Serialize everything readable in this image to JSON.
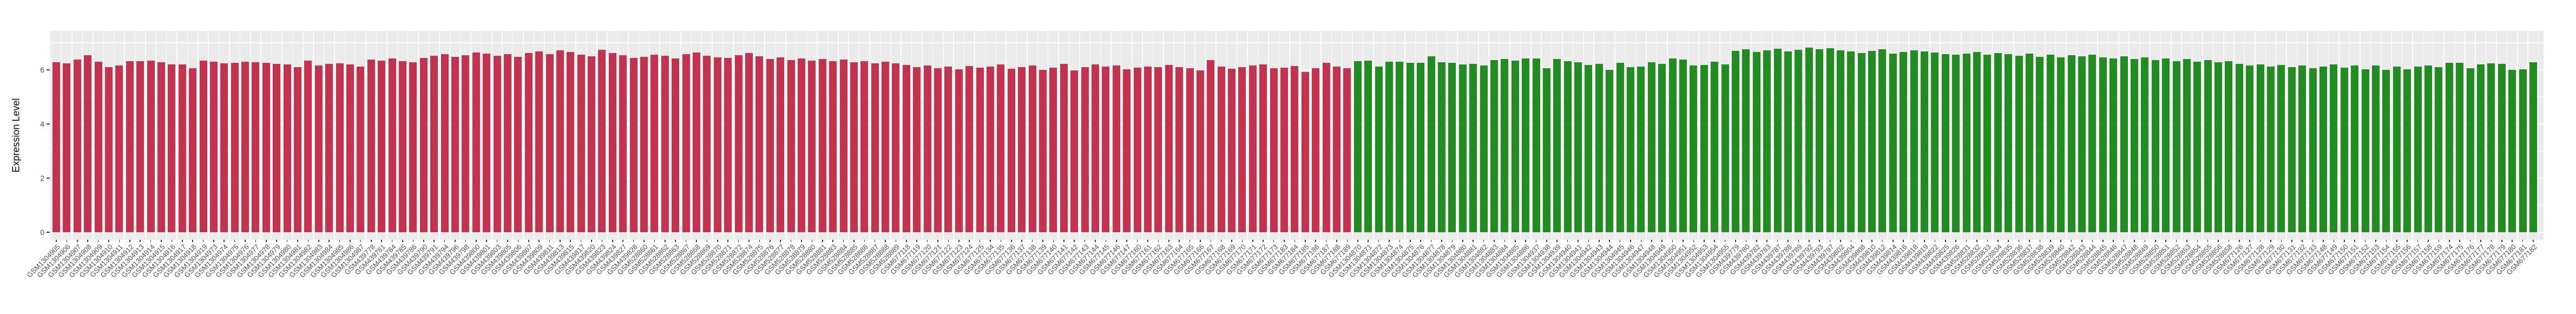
{
  "chart_data": {
    "type": "bar",
    "title": "",
    "xlabel": "",
    "ylabel": "Expression Level",
    "ylim": [
      0,
      7.45
    ],
    "yticks": [
      0,
      2,
      4,
      6
    ],
    "grid": "on",
    "legend": "none",
    "panel_background": "#EBEBEB",
    "grid_color": "#FFFFFF",
    "tick_text_color": "#4D4D4D",
    "colors": {
      "r": "#C2334F",
      "g": "#228B22"
    },
    "samples": [
      [
        "GSM1304905",
        6.28,
        "r"
      ],
      [
        "GSM1304906",
        6.25,
        "r"
      ],
      [
        "GSM1304907",
        6.38,
        "r"
      ],
      [
        "GSM1304908",
        6.55,
        "r"
      ],
      [
        "GSM1304909",
        6.31,
        "r"
      ],
      [
        "GSM1304910",
        6.1,
        "r"
      ],
      [
        "GSM1304911",
        6.16,
        "r"
      ],
      [
        "GSM1304912",
        6.32,
        "r"
      ],
      [
        "GSM1304913",
        6.32,
        "r"
      ],
      [
        "GSM1304914",
        6.34,
        "r"
      ],
      [
        "GSM1304915",
        6.28,
        "r"
      ],
      [
        "GSM1304916",
        6.21,
        "r"
      ],
      [
        "GSM1304917",
        6.21,
        "r"
      ],
      [
        "GSM1304918",
        6.06,
        "r"
      ],
      [
        "GSM1304919",
        6.35,
        "r"
      ],
      [
        "GSM1304973",
        6.3,
        "r"
      ],
      [
        "GSM1304974",
        6.24,
        "r"
      ],
      [
        "GSM1304975",
        6.27,
        "r"
      ],
      [
        "GSM1304976",
        6.3,
        "r"
      ],
      [
        "GSM1304977",
        6.28,
        "r"
      ],
      [
        "GSM1304978",
        6.26,
        "r"
      ],
      [
        "GSM1304979",
        6.23,
        "r"
      ],
      [
        "GSM1304980",
        6.2,
        "r"
      ],
      [
        "GSM1304981",
        6.1,
        "r"
      ],
      [
        "GSM1304982",
        6.34,
        "r"
      ],
      [
        "GSM1304983",
        6.17,
        "r"
      ],
      [
        "GSM1304984",
        6.22,
        "r"
      ],
      [
        "GSM1304985",
        6.24,
        "r"
      ],
      [
        "GSM1304986",
        6.2,
        "r"
      ],
      [
        "GSM1304987",
        6.12,
        "r"
      ],
      [
        "GSM439778",
        6.38,
        "r"
      ],
      [
        "GSM439781",
        6.35,
        "r"
      ],
      [
        "GSM439784",
        6.42,
        "r"
      ],
      [
        "GSM439785",
        6.32,
        "r"
      ],
      [
        "GSM439786",
        6.28,
        "r"
      ],
      [
        "GSM439790",
        6.45,
        "r"
      ],
      [
        "GSM439791",
        6.52,
        "r"
      ],
      [
        "GSM439794",
        6.58,
        "r"
      ],
      [
        "GSM439796",
        6.48,
        "r"
      ],
      [
        "GSM439798",
        6.55,
        "r"
      ],
      [
        "GSM439800",
        6.65,
        "r"
      ],
      [
        "GSM439801",
        6.6,
        "r"
      ],
      [
        "GSM439803",
        6.52,
        "r"
      ],
      [
        "GSM439805",
        6.58,
        "r"
      ],
      [
        "GSM439806",
        6.48,
        "r"
      ],
      [
        "GSM439807",
        6.62,
        "r"
      ],
      [
        "GSM439809",
        6.68,
        "r"
      ],
      [
        "GSM439811",
        6.58,
        "r"
      ],
      [
        "GSM439813",
        6.72,
        "r"
      ],
      [
        "GSM439815",
        6.66,
        "r"
      ],
      [
        "GSM439817",
        6.56,
        "r"
      ],
      [
        "GSM439820",
        6.5,
        "r"
      ],
      [
        "GSM439823",
        6.75,
        "r"
      ],
      [
        "GSM439824",
        6.62,
        "r"
      ],
      [
        "GSM439827",
        6.55,
        "r"
      ],
      [
        "GSM439828",
        6.45,
        "r"
      ],
      [
        "GSM528860",
        6.48,
        "r"
      ],
      [
        "GSM528861",
        6.56,
        "r"
      ],
      [
        "GSM528862",
        6.52,
        "r"
      ],
      [
        "GSM528863",
        6.42,
        "r"
      ],
      [
        "GSM528867",
        6.58,
        "r"
      ],
      [
        "GSM528868",
        6.65,
        "r"
      ],
      [
        "GSM528869",
        6.53,
        "r"
      ],
      [
        "GSM528870",
        6.47,
        "r"
      ],
      [
        "GSM528871",
        6.44,
        "r"
      ],
      [
        "GSM528872",
        6.55,
        "r"
      ],
      [
        "GSM528874",
        6.62,
        "r"
      ],
      [
        "GSM528875",
        6.5,
        "r"
      ],
      [
        "GSM528876",
        6.4,
        "r"
      ],
      [
        "GSM528877",
        6.46,
        "r"
      ],
      [
        "GSM528878",
        6.36,
        "r"
      ],
      [
        "GSM528879",
        6.43,
        "r"
      ],
      [
        "GSM528880",
        6.34,
        "r"
      ],
      [
        "GSM528881",
        6.4,
        "r"
      ],
      [
        "GSM528883",
        6.32,
        "r"
      ],
      [
        "GSM528884",
        6.38,
        "r"
      ],
      [
        "GSM528885",
        6.28,
        "r"
      ],
      [
        "GSM528886",
        6.33,
        "r"
      ],
      [
        "GSM528887",
        6.25,
        "r"
      ],
      [
        "GSM528888",
        6.3,
        "r"
      ],
      [
        "GSM528889",
        6.24,
        "r"
      ],
      [
        "GSM677118",
        6.18,
        "r"
      ],
      [
        "GSM677119",
        6.1,
        "r"
      ],
      [
        "GSM677120",
        6.16,
        "r"
      ],
      [
        "GSM677121",
        6.06,
        "r"
      ],
      [
        "GSM677122",
        6.13,
        "r"
      ],
      [
        "GSM677123",
        6.03,
        "r"
      ],
      [
        "GSM677124",
        6.15,
        "r"
      ],
      [
        "GSM677125",
        6.08,
        "r"
      ],
      [
        "GSM677134",
        6.12,
        "r"
      ],
      [
        "GSM677135",
        6.2,
        "r"
      ],
      [
        "GSM677136",
        6.04,
        "r"
      ],
      [
        "GSM677137",
        6.1,
        "r"
      ],
      [
        "GSM677138",
        6.16,
        "r"
      ],
      [
        "GSM677139",
        6.0,
        "r"
      ],
      [
        "GSM677140",
        6.08,
        "r"
      ],
      [
        "GSM677141",
        6.23,
        "r"
      ],
      [
        "GSM677142",
        5.98,
        "r"
      ],
      [
        "GSM677143",
        6.1,
        "r"
      ],
      [
        "GSM677144",
        6.21,
        "r"
      ],
      [
        "GSM677145",
        6.13,
        "r"
      ],
      [
        "GSM677146",
        6.16,
        "r"
      ],
      [
        "GSM677147",
        6.03,
        "r"
      ],
      [
        "GSM677160",
        6.08,
        "r"
      ],
      [
        "GSM677161",
        6.12,
        "r"
      ],
      [
        "GSM677162",
        6.1,
        "r"
      ],
      [
        "GSM677163",
        6.18,
        "r"
      ],
      [
        "GSM677164",
        6.11,
        "r"
      ],
      [
        "GSM677165",
        6.06,
        "r"
      ],
      [
        "GSM677166",
        5.98,
        "r"
      ],
      [
        "GSM677167",
        6.37,
        "r"
      ],
      [
        "GSM677168",
        6.13,
        "r"
      ],
      [
        "GSM677169",
        6.04,
        "r"
      ],
      [
        "GSM677170",
        6.1,
        "r"
      ],
      [
        "GSM677171",
        6.16,
        "r"
      ],
      [
        "GSM677172",
        6.2,
        "r"
      ],
      [
        "GSM677173",
        6.06,
        "r"
      ],
      [
        "GSM677183",
        6.08,
        "r"
      ],
      [
        "GSM677184",
        6.14,
        "r"
      ],
      [
        "GSM677185",
        5.93,
        "r"
      ],
      [
        "GSM677186",
        6.06,
        "r"
      ],
      [
        "GSM677187",
        6.26,
        "r"
      ],
      [
        "GSM677188",
        6.13,
        "r"
      ],
      [
        "GSM677189",
        6.06,
        "r"
      ],
      [
        "GSM1304870",
        6.33,
        "g"
      ],
      [
        "GSM1304871",
        6.34,
        "g"
      ],
      [
        "GSM1304872",
        6.13,
        "g"
      ],
      [
        "GSM1304873",
        6.3,
        "g"
      ],
      [
        "GSM1304874",
        6.31,
        "g"
      ],
      [
        "GSM1304875",
        6.26,
        "g"
      ],
      [
        "GSM1304876",
        6.26,
        "g"
      ],
      [
        "GSM1304877",
        6.5,
        "g"
      ],
      [
        "GSM1304878",
        6.28,
        "g"
      ],
      [
        "GSM1304879",
        6.26,
        "g"
      ],
      [
        "GSM1304880",
        6.2,
        "g"
      ],
      [
        "GSM1304881",
        6.23,
        "g"
      ],
      [
        "GSM1304882",
        6.16,
        "g"
      ],
      [
        "GSM1304883",
        6.36,
        "g"
      ],
      [
        "GSM1304884",
        6.4,
        "g"
      ],
      [
        "GSM1304885",
        6.34,
        "g"
      ],
      [
        "GSM1304886",
        6.43,
        "g"
      ],
      [
        "GSM1304937",
        6.43,
        "g"
      ],
      [
        "GSM1304938",
        6.06,
        "g"
      ],
      [
        "GSM1304939",
        6.4,
        "g"
      ],
      [
        "GSM1304940",
        6.33,
        "g"
      ],
      [
        "GSM1304941",
        6.28,
        "g"
      ],
      [
        "GSM1304942",
        6.18,
        "g"
      ],
      [
        "GSM1304943",
        6.23,
        "g"
      ],
      [
        "GSM1304944",
        6.0,
        "g"
      ],
      [
        "GSM1304945",
        6.26,
        "g"
      ],
      [
        "GSM1304946",
        6.1,
        "g"
      ],
      [
        "GSM1304947",
        6.13,
        "g"
      ],
      [
        "GSM1304948",
        6.28,
        "g"
      ],
      [
        "GSM1304949",
        6.23,
        "g"
      ],
      [
        "GSM1304950",
        6.43,
        "g"
      ],
      [
        "GSM1304951",
        6.38,
        "g"
      ],
      [
        "GSM1304952",
        6.16,
        "g"
      ],
      [
        "GSM1304953",
        6.18,
        "g"
      ],
      [
        "GSM1304954",
        6.3,
        "g"
      ],
      [
        "GSM1304955",
        6.2,
        "g"
      ],
      [
        "GSM439779",
        6.7,
        "g"
      ],
      [
        "GSM439780",
        6.76,
        "g"
      ],
      [
        "GSM439782",
        6.66,
        "g"
      ],
      [
        "GSM439783",
        6.73,
        "g"
      ],
      [
        "GSM439787",
        6.78,
        "g"
      ],
      [
        "GSM439788",
        6.68,
        "g"
      ],
      [
        "GSM439789",
        6.74,
        "g"
      ],
      [
        "GSM439792",
        6.83,
        "g"
      ],
      [
        "GSM439793",
        6.76,
        "g"
      ],
      [
        "GSM439797",
        6.8,
        "g"
      ],
      [
        "GSM439802",
        6.73,
        "g"
      ],
      [
        "GSM439804",
        6.68,
        "g"
      ],
      [
        "GSM439808",
        6.63,
        "g"
      ],
      [
        "GSM439810",
        6.7,
        "g"
      ],
      [
        "GSM439812",
        6.76,
        "g"
      ],
      [
        "GSM439814",
        6.6,
        "g"
      ],
      [
        "GSM439816",
        6.66,
        "g"
      ],
      [
        "GSM439818",
        6.73,
        "g"
      ],
      [
        "GSM439819",
        6.68,
        "g"
      ],
      [
        "GSM439822",
        6.64,
        "g"
      ],
      [
        "GSM439825",
        6.58,
        "g"
      ],
      [
        "GSM439826",
        6.56,
        "g"
      ],
      [
        "GSM528831",
        6.6,
        "g"
      ],
      [
        "GSM528832",
        6.66,
        "g"
      ],
      [
        "GSM528833",
        6.56,
        "g"
      ],
      [
        "GSM528834",
        6.63,
        "g"
      ],
      [
        "GSM528835",
        6.58,
        "g"
      ],
      [
        "GSM528836",
        6.53,
        "g"
      ],
      [
        "GSM528837",
        6.6,
        "g"
      ],
      [
        "GSM528838",
        6.48,
        "g"
      ],
      [
        "GSM528839",
        6.56,
        "g"
      ],
      [
        "GSM528840",
        6.46,
        "g"
      ],
      [
        "GSM528842",
        6.54,
        "g"
      ],
      [
        "GSM528843",
        6.5,
        "g"
      ],
      [
        "GSM528844",
        6.56,
        "g"
      ],
      [
        "GSM528845",
        6.46,
        "g"
      ],
      [
        "GSM528846",
        6.43,
        "g"
      ],
      [
        "GSM528847",
        6.5,
        "g"
      ],
      [
        "GSM528848",
        6.4,
        "g"
      ],
      [
        "GSM528849",
        6.46,
        "g"
      ],
      [
        "GSM528850",
        6.36,
        "g"
      ],
      [
        "GSM528851",
        6.43,
        "g"
      ],
      [
        "GSM528852",
        6.33,
        "g"
      ],
      [
        "GSM528853",
        6.4,
        "g"
      ],
      [
        "GSM528854",
        6.3,
        "g"
      ],
      [
        "GSM528855",
        6.36,
        "g"
      ],
      [
        "GSM528856",
        6.28,
        "g"
      ],
      [
        "GSM528858",
        6.33,
        "g"
      ],
      [
        "GSM677126",
        6.23,
        "g"
      ],
      [
        "GSM677127",
        6.16,
        "g"
      ],
      [
        "GSM677128",
        6.2,
        "g"
      ],
      [
        "GSM677129",
        6.13,
        "g"
      ],
      [
        "GSM677130",
        6.18,
        "g"
      ],
      [
        "GSM677131",
        6.1,
        "g"
      ],
      [
        "GSM677132",
        6.16,
        "g"
      ],
      [
        "GSM677133",
        6.06,
        "g"
      ],
      [
        "GSM677148",
        6.13,
        "g"
      ],
      [
        "GSM677149",
        6.2,
        "g"
      ],
      [
        "GSM677150",
        6.08,
        "g"
      ],
      [
        "GSM677151",
        6.16,
        "g"
      ],
      [
        "GSM677152",
        6.03,
        "g"
      ],
      [
        "GSM677153",
        6.16,
        "g"
      ],
      [
        "GSM677154",
        6.0,
        "g"
      ],
      [
        "GSM677155",
        6.13,
        "g"
      ],
      [
        "GSM677156",
        6.02,
        "g"
      ],
      [
        "GSM677157",
        6.12,
        "g"
      ],
      [
        "GSM677158",
        6.16,
        "g"
      ],
      [
        "GSM677159",
        6.1,
        "g"
      ],
      [
        "GSM677174",
        6.26,
        "g"
      ],
      [
        "GSM677175",
        6.26,
        "g"
      ],
      [
        "GSM677176",
        6.06,
        "g"
      ],
      [
        "GSM677177",
        6.2,
        "g"
      ],
      [
        "GSM677178",
        6.24,
        "g"
      ],
      [
        "GSM677179",
        6.22,
        "g"
      ],
      [
        "GSM677180",
        6.0,
        "g"
      ],
      [
        "GSM677181",
        6.02,
        "g"
      ],
      [
        "GSM677182",
        6.28,
        "g"
      ]
    ]
  }
}
